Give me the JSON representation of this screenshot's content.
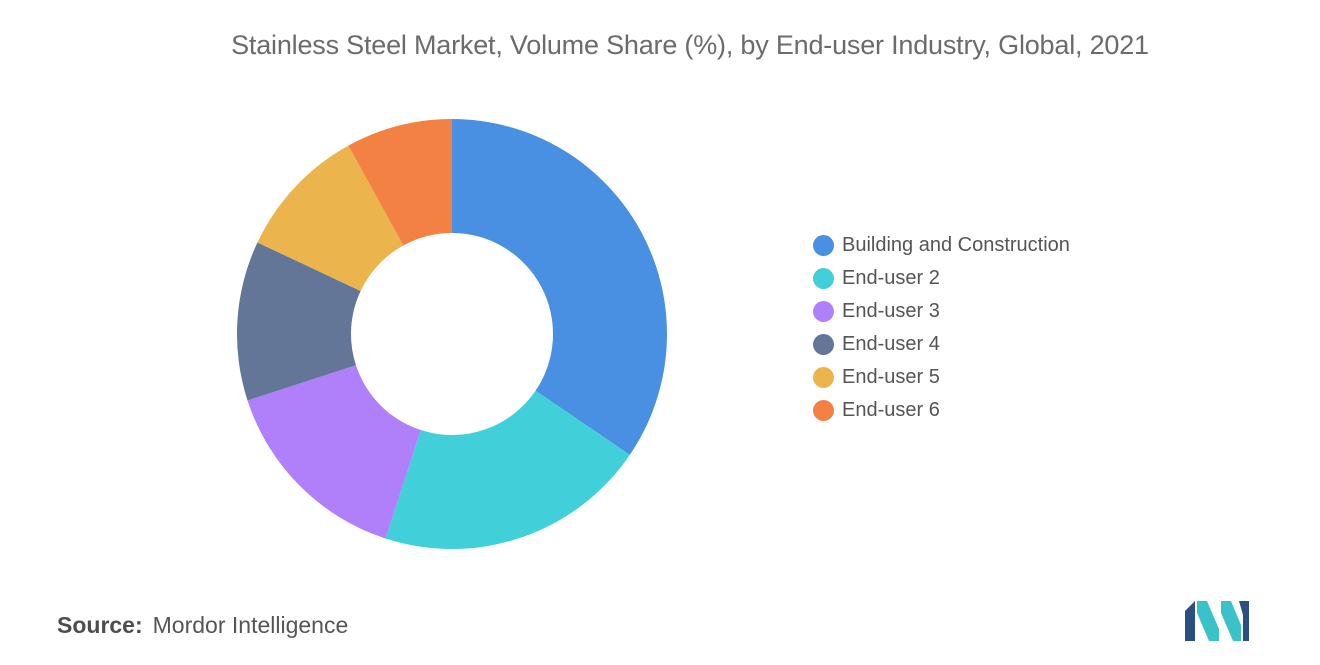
{
  "chart_data": {
    "type": "pie",
    "title": "Stainless Steel Market, Volume Share (%), by End-user Industry, Global, 2021",
    "donut": true,
    "legend_position": "right",
    "series": [
      {
        "name": "Building and Construction",
        "value": 34.5,
        "color": "#4a90e2"
      },
      {
        "name": "End-user 2",
        "value": 20.5,
        "color": "#41d0d9"
      },
      {
        "name": "End-user 3",
        "value": 15.0,
        "color": "#b07ffa"
      },
      {
        "name": "End-user 4",
        "value": 12.0,
        "color": "#637698"
      },
      {
        "name": "End-user 5",
        "value": 10.0,
        "color": "#ecb44c"
      },
      {
        "name": "End-user 6",
        "value": 8.0,
        "color": "#f28143"
      }
    ]
  },
  "footer": {
    "source_label": "Source:",
    "source_value": "Mordor Intelligence"
  },
  "logo": {
    "icon": "mordor-intelligence-logo-icon",
    "colors": [
      "#2a4f80",
      "#39c3c9"
    ]
  }
}
